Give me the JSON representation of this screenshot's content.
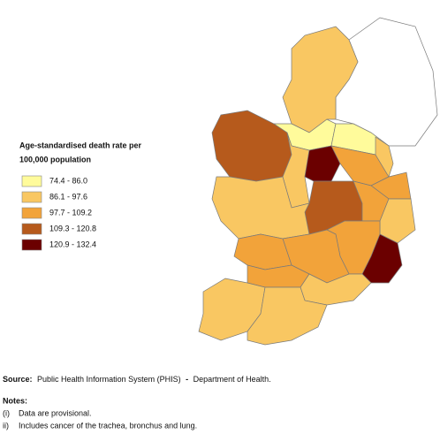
{
  "legend": {
    "title_lines": [
      "Age-standardised death rate per",
      "100,000 population"
    ],
    "items": [
      {
        "label": "74.4 - 86.0",
        "color": "#fffb9b"
      },
      {
        "label": "86.1 - 97.6",
        "color": "#f9c762"
      },
      {
        "label": "97.7 - 109.2",
        "color": "#f2a33a"
      },
      {
        "label": "109.3 - 120.8",
        "color": "#b65a1c"
      },
      {
        "label": "120.9 - 132.4",
        "color": "#6b0000"
      }
    ]
  },
  "source": {
    "label": "Source:",
    "text": "Public Health Information System (PHIS)",
    "separator": "-",
    "department": "Department of Health."
  },
  "notes": {
    "title": "Notes:",
    "items": [
      {
        "marker": "(i)",
        "text": "Data are provisional."
      },
      {
        "marker": "ii)",
        "text": "Includes cancer of the trachea, bronchus and lung."
      }
    ]
  }
}
